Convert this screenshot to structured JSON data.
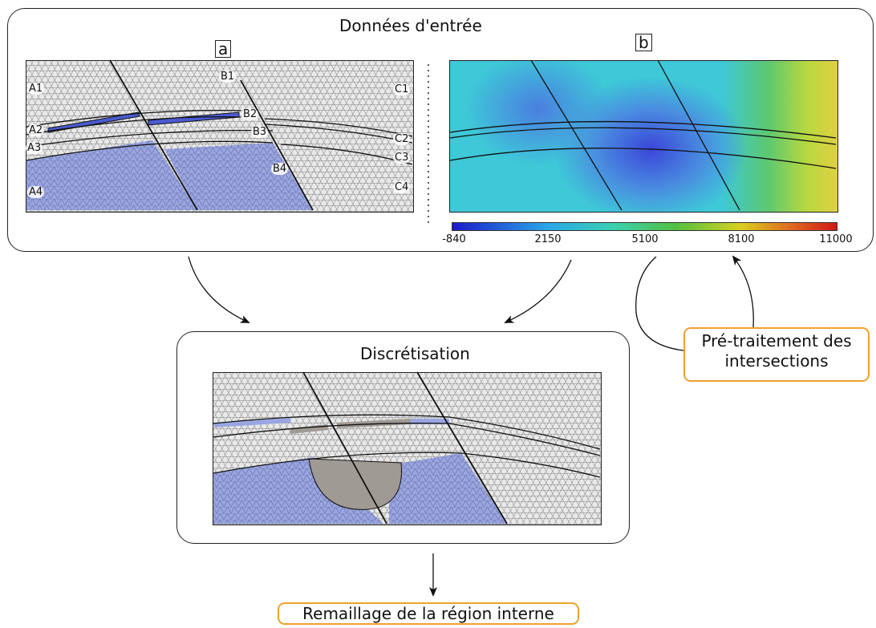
{
  "top_box": {
    "title": "Données d'entrée"
  },
  "panel_a": {
    "tag": "a",
    "regions": [
      "A1",
      "A2",
      "A3",
      "A4",
      "B1",
      "B2",
      "B3",
      "B4",
      "C1",
      "C2",
      "C3",
      "C4"
    ]
  },
  "panel_b": {
    "tag": "b",
    "colorbar": {
      "ticks": [
        "-840",
        "2150",
        "5100",
        "8100",
        "11000"
      ],
      "colors": [
        "#1a1ac8",
        "#2aa8e8",
        "#3cd0b0",
        "#50c040",
        "#d8d020",
        "#e06a20",
        "#d01818"
      ]
    }
  },
  "middle_box": {
    "title": "Discrétisation"
  },
  "side_note": {
    "line1": "Pré-traitement des",
    "line2": "intersections"
  },
  "bottom_note": {
    "text": "Remaillage de la région interne"
  },
  "colors": {
    "blue_region": "#9aa6e2",
    "grey_region": "#a09a94",
    "mesh": "#e9e9e9",
    "accent": "#f0a030"
  }
}
